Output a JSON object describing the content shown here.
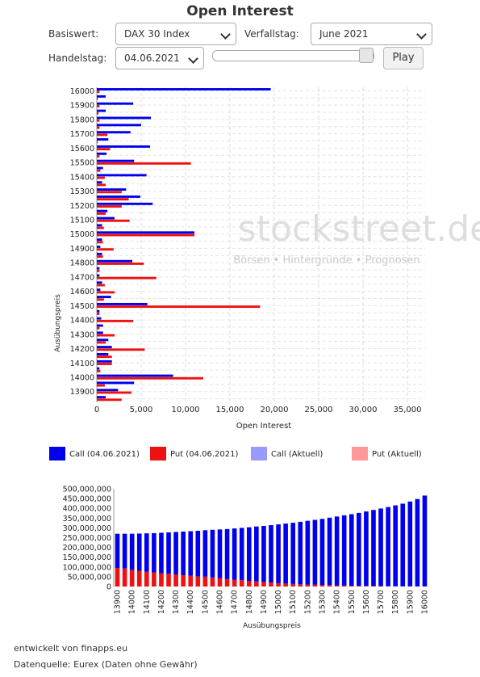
{
  "header": {
    "title": "Open Interest"
  },
  "controls": {
    "basiswert_label": "Basiswert:",
    "basiswert_value": "DAX 30 Index",
    "verfallstag_label": "Verfallstag:",
    "verfallstag_value": "June 2021",
    "handelstag_label": "Handelstag:",
    "handelstag_value": "04.06.2021",
    "play_label": "Play",
    "slider_position": 0.93
  },
  "watermark": {
    "brand": "stockstreet.de",
    "slogan": "Börsen • Hintergründe • Prognosen"
  },
  "legend": [
    {
      "label": "Call (04.06.2021)",
      "color": "#0000ee"
    },
    {
      "label": "Put (04.06.2021)",
      "color": "#ee1111"
    },
    {
      "label": "Call (Aktuell)",
      "color": "#9999ff"
    },
    {
      "label": "Put (Aktuell)",
      "color": "#ff9999"
    }
  ],
  "footer": {
    "developer": "entwickelt von finapps.eu",
    "source": "Datenquelle: Eurex (Daten ohne Gewähr)"
  },
  "chart_data": [
    {
      "type": "bar",
      "orientation": "horizontal",
      "xlabel": "Open Interest",
      "ylabel": "Ausübungspreis",
      "xlim": [
        0,
        37000
      ],
      "xticks": [
        0,
        5000,
        10000,
        15000,
        20000,
        25000,
        30000,
        35000
      ],
      "xtick_labels": [
        "0",
        "5,000",
        "10,000",
        "15,000",
        "20,000",
        "25,000",
        "30,000",
        "35,000"
      ],
      "grid": true,
      "categories": [
        "16000",
        "15950",
        "15900",
        "15850",
        "15800",
        "15750",
        "15700",
        "15650",
        "15600",
        "15550",
        "15500",
        "15450",
        "15400",
        "15350",
        "15300",
        "15250",
        "15200",
        "15150",
        "15100",
        "15050",
        "15000",
        "14950",
        "14900",
        "14850",
        "14800",
        "14750",
        "14700",
        "14650",
        "14600",
        "14550",
        "14500",
        "14450",
        "14400",
        "14350",
        "14300",
        "14250",
        "14200",
        "14150",
        "14100",
        "14050",
        "14000",
        "13950",
        "13900",
        "13850"
      ],
      "category_labels": [
        "16000",
        "",
        "15900",
        "",
        "15800",
        "",
        "15700",
        "",
        "15600",
        "",
        "15500",
        "",
        "15400",
        "",
        "15300",
        "",
        "15200",
        "",
        "15100",
        "",
        "15000",
        "",
        "14900",
        "",
        "14800",
        "",
        "14700",
        "",
        "14600",
        "",
        "14500",
        "",
        "14400",
        "",
        "14300",
        "",
        "14200",
        "",
        "14100",
        "",
        "14000",
        "",
        "13900",
        ""
      ],
      "series": [
        {
          "name": "Call (04.06.2021)",
          "color": "#0000ee",
          "values": [
            19600,
            1000,
            4100,
            1000,
            6100,
            5000,
            3800,
            1300,
            6000,
            1100,
            4200,
            700,
            5600,
            600,
            3300,
            4900,
            6300,
            1200,
            2000,
            600,
            11000,
            600,
            400,
            600,
            4000,
            300,
            300,
            600,
            400,
            1600,
            5700,
            300,
            500,
            700,
            700,
            1300,
            1700,
            1300,
            1700,
            300,
            8600,
            4200,
            2400,
            1000
          ]
        },
        {
          "name": "Put (04.06.2021)",
          "color": "#ee1111",
          "values": [
            300,
            100,
            300,
            200,
            300,
            300,
            1200,
            100,
            1500,
            300,
            10600,
            400,
            900,
            1000,
            2800,
            3600,
            2800,
            1000,
            3700,
            800,
            11000,
            700,
            1900,
            700,
            5300,
            300,
            6700,
            900,
            2000,
            800,
            18400,
            300,
            4100,
            300,
            2000,
            1000,
            5400,
            1700,
            1700,
            400,
            12000,
            900,
            3900,
            2800
          ]
        }
      ]
    },
    {
      "type": "bar",
      "stacked": true,
      "xlabel": "Ausübungspreis",
      "ylabel": "",
      "ylim": [
        0,
        500000000
      ],
      "yticks": [
        0,
        50000000,
        100000000,
        150000000,
        200000000,
        250000000,
        300000000,
        350000000,
        400000000,
        450000000,
        500000000
      ],
      "ytick_labels": [
        "0",
        "50,000,000",
        "100,000,000",
        "150,000,000",
        "200,000,000",
        "250,000,000",
        "300,000,000",
        "350,000,000",
        "400,000,000",
        "450,000,000",
        "500,000,000"
      ],
      "categories": [
        "13900",
        "13950",
        "14000",
        "14050",
        "14100",
        "14150",
        "14200",
        "14250",
        "14300",
        "14350",
        "14400",
        "14450",
        "14500",
        "14550",
        "14600",
        "14650",
        "14700",
        "14750",
        "14800",
        "14850",
        "14900",
        "14950",
        "15000",
        "15050",
        "15100",
        "15150",
        "15200",
        "15250",
        "15300",
        "15350",
        "15400",
        "15450",
        "15500",
        "15550",
        "15600",
        "15650",
        "15700",
        "15750",
        "15800",
        "15850",
        "15900",
        "15950",
        "16000"
      ],
      "category_labels": [
        "13900",
        "",
        "14000",
        "",
        "14100",
        "",
        "14200",
        "",
        "14300",
        "",
        "14400",
        "",
        "14500",
        "",
        "14600",
        "",
        "14700",
        "",
        "14800",
        "",
        "14900",
        "",
        "15000",
        "",
        "15100",
        "",
        "15200",
        "",
        "15300",
        "",
        "15400",
        "",
        "15500",
        "",
        "15600",
        "",
        "15700",
        "",
        "15800",
        "",
        "15900",
        "",
        "16000"
      ],
      "series": [
        {
          "name": "Put",
          "color": "#ee1111",
          "values": [
            95000000,
            92000000,
            85000000,
            80000000,
            75000000,
            72000000,
            68000000,
            65000000,
            62000000,
            58000000,
            55000000,
            52000000,
            50000000,
            46000000,
            42000000,
            38000000,
            35000000,
            32000000,
            29000000,
            26000000,
            23000000,
            20000000,
            17000000,
            15000000,
            13000000,
            11000000,
            10000000,
            9000000,
            8000000,
            7000000,
            6000000,
            5000000,
            4000000,
            3500000,
            3000000,
            2500000,
            2000000,
            1500000,
            1000000,
            800000,
            600000,
            400000,
            200000
          ]
        },
        {
          "name": "Call",
          "color": "#0000ee",
          "values": [
            175000000,
            178000000,
            185000000,
            191000000,
            197000000,
            201000000,
            207000000,
            212000000,
            217000000,
            223000000,
            228000000,
            233000000,
            238000000,
            244000000,
            250000000,
            256000000,
            262000000,
            268000000,
            274000000,
            281000000,
            287000000,
            294000000,
            301000000,
            307000000,
            313000000,
            320000000,
            326000000,
            332000000,
            338000000,
            345000000,
            352000000,
            359000000,
            366000000,
            373000000,
            381000000,
            389000000,
            397000000,
            405000000,
            414000000,
            423000000,
            434000000,
            447000000,
            465000000
          ]
        }
      ]
    }
  ]
}
